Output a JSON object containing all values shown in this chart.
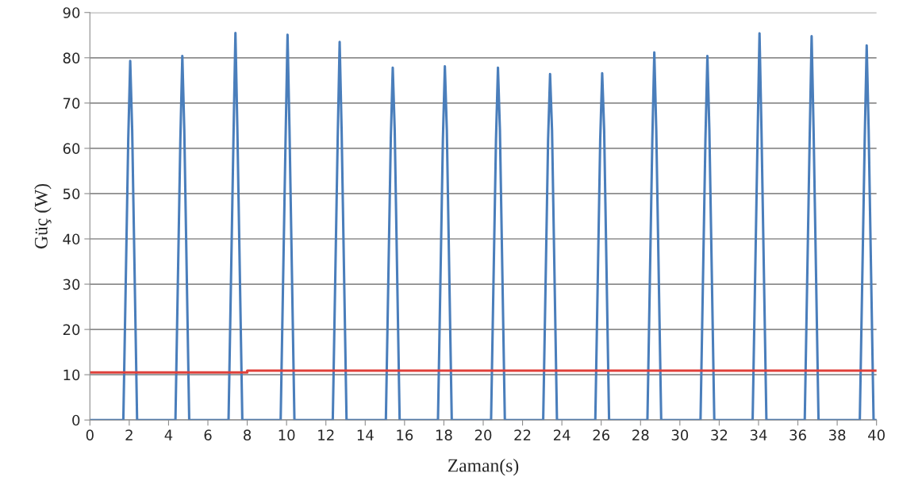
{
  "chart_data": {
    "type": "line",
    "xlabel": "Zaman(s)",
    "ylabel": "Güç (W)",
    "xlim": [
      0,
      40
    ],
    "xticks": [
      0,
      2,
      4,
      6,
      8,
      10,
      12,
      14,
      16,
      18,
      20,
      22,
      24,
      26,
      28,
      30,
      32,
      34,
      36,
      38,
      40
    ],
    "ylim": [
      0,
      90
    ],
    "yticks": [
      0,
      10,
      20,
      30,
      40,
      50,
      60,
      70,
      80,
      90
    ],
    "grid": "y",
    "line_style": "solid",
    "marker": "none",
    "series": [
      {
        "color": "#4a7ebb",
        "x": [
          0,
          1.7,
          1.95,
          2.05,
          2.15,
          2.4,
          4.35,
          4.6,
          4.7,
          4.8,
          5.05,
          7.05,
          7.3,
          7.4,
          7.5,
          7.75,
          9.7,
          9.95,
          10.05,
          10.15,
          10.4,
          12.35,
          12.6,
          12.7,
          12.8,
          13.05,
          15.05,
          15.3,
          15.4,
          15.5,
          15.75,
          17.7,
          17.95,
          18.05,
          18.15,
          18.4,
          20.4,
          20.65,
          20.75,
          20.85,
          21.1,
          23.05,
          23.3,
          23.4,
          23.5,
          23.75,
          25.7,
          25.95,
          26.05,
          26.15,
          26.4,
          28.35,
          28.6,
          28.7,
          28.8,
          29.05,
          31.05,
          31.3,
          31.4,
          31.5,
          31.75,
          33.7,
          33.95,
          34.05,
          34.15,
          34.4,
          36.35,
          36.6,
          36.7,
          36.8,
          37.05,
          39.15,
          39.4,
          39.5,
          39.6,
          39.85,
          40
        ],
        "values": [
          0,
          0,
          62,
          79.3,
          64,
          0,
          0,
          62,
          80.4,
          64,
          0,
          0,
          62,
          85.5,
          64,
          0,
          0,
          62,
          85.1,
          64,
          0,
          0,
          62,
          83.5,
          64,
          0,
          0,
          62,
          77.8,
          64,
          0,
          0,
          62,
          78.1,
          64,
          0,
          0,
          62,
          77.8,
          64,
          0,
          0,
          62,
          76.4,
          64,
          0,
          0,
          62,
          76.6,
          64,
          0,
          0,
          62,
          81.2,
          64,
          0,
          0,
          62,
          80.4,
          64,
          0,
          0,
          62,
          85.4,
          64,
          0,
          0,
          62,
          84.8,
          64,
          0,
          0,
          62,
          82.7,
          64,
          0,
          0
        ]
      },
      {
        "color": "#e0403a",
        "x": [
          0,
          8,
          8,
          40
        ],
        "values": [
          10.5,
          10.5,
          10.9,
          10.9
        ]
      }
    ]
  }
}
